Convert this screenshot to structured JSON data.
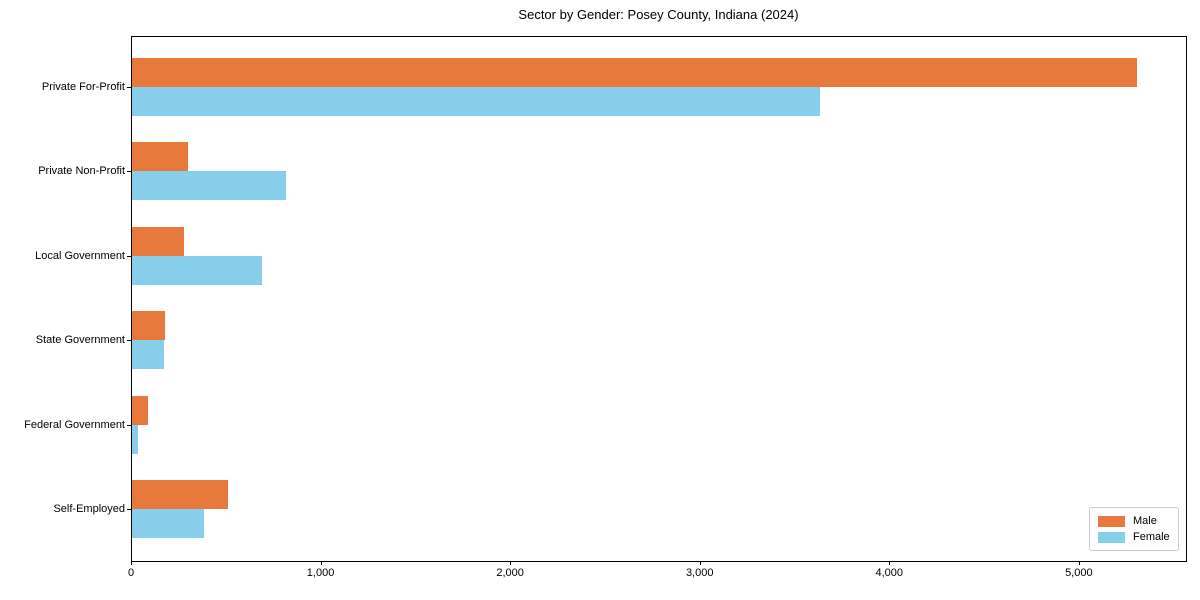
{
  "chart_data": {
    "type": "bar",
    "orientation": "horizontal",
    "title": "Sector by Gender: Posey County, Indiana (2024)",
    "categories": [
      "Private For-Profit",
      "Private Non-Profit",
      "Local Government",
      "State Government",
      "Federal Government",
      "Self-Employed"
    ],
    "series": [
      {
        "name": "Male",
        "color": "#e8793c",
        "values": [
          5300,
          295,
          275,
          175,
          85,
          505
        ]
      },
      {
        "name": "Female",
        "color": "#87ceeb",
        "values": [
          3630,
          810,
          685,
          170,
          30,
          380
        ]
      }
    ],
    "xlabel": "",
    "ylabel": "",
    "xlim": [
      0,
      5560
    ],
    "x_ticks": [
      {
        "value": 0,
        "label": "0"
      },
      {
        "value": 1000,
        "label": "1,000"
      },
      {
        "value": 2000,
        "label": "2,000"
      },
      {
        "value": 3000,
        "label": "3,000"
      },
      {
        "value": 4000,
        "label": "4,000"
      },
      {
        "value": 5000,
        "label": "5,000"
      }
    ],
    "grid": false,
    "legend_position": "lower right"
  }
}
